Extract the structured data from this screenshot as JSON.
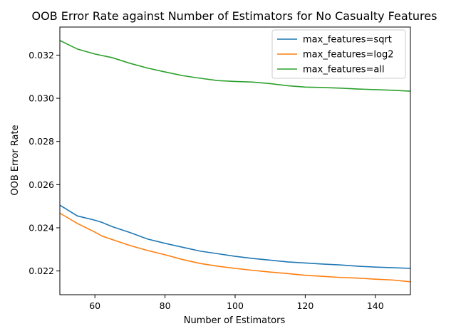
{
  "chart_data": {
    "type": "line",
    "title": "OOB Error Rate against Number of Estimators for No Casualty Features",
    "xlabel": "Number of Estimators",
    "ylabel": "OOB Error Rate",
    "xlim": [
      50,
      150
    ],
    "ylim": [
      0.0209,
      0.0333
    ],
    "x_ticks": [
      60,
      80,
      100,
      120,
      140
    ],
    "y_ticks": [
      0.022,
      0.024,
      0.026,
      0.028,
      0.03,
      0.032
    ],
    "x_tick_labels": [
      "60",
      "80",
      "100",
      "120",
      "140"
    ],
    "y_tick_labels": [
      "0.022",
      "0.024",
      "0.026",
      "0.028",
      "0.030",
      "0.032"
    ],
    "legend_position": "top-right",
    "grid": false,
    "series": [
      {
        "name": "max_features=sqrt",
        "color": "#1f77b4",
        "x": [
          50,
          55,
          60,
          62,
          65,
          70,
          75,
          80,
          85,
          90,
          95,
          100,
          105,
          110,
          115,
          120,
          125,
          130,
          135,
          140,
          145,
          150
        ],
        "y": [
          0.02505,
          0.02455,
          0.02435,
          0.02425,
          0.02405,
          0.02378,
          0.02348,
          0.02328,
          0.0231,
          0.02292,
          0.0228,
          0.02268,
          0.02258,
          0.0225,
          0.02242,
          0.02237,
          0.02232,
          0.02228,
          0.02222,
          0.02218,
          0.02215,
          0.02212
        ]
      },
      {
        "name": "max_features=log2",
        "color": "#ff7f0e",
        "x": [
          50,
          55,
          60,
          62,
          65,
          70,
          75,
          80,
          85,
          90,
          95,
          100,
          105,
          110,
          115,
          120,
          125,
          130,
          135,
          140,
          145,
          150
        ],
        "y": [
          0.02468,
          0.0242,
          0.0238,
          0.02362,
          0.02345,
          0.02318,
          0.02295,
          0.02275,
          0.02253,
          0.02235,
          0.02222,
          0.02212,
          0.02203,
          0.02195,
          0.02188,
          0.0218,
          0.02175,
          0.0217,
          0.02167,
          0.02162,
          0.02158,
          0.0215
        ]
      },
      {
        "name": "max_features=all",
        "color": "#2ca02c",
        "x": [
          50,
          55,
          60,
          65,
          70,
          75,
          80,
          85,
          90,
          95,
          100,
          105,
          110,
          115,
          120,
          125,
          130,
          135,
          140,
          145,
          150
        ],
        "y": [
          0.03268,
          0.03228,
          0.03205,
          0.03188,
          0.03162,
          0.0314,
          0.03122,
          0.03105,
          0.03093,
          0.03082,
          0.03078,
          0.03075,
          0.03068,
          0.03058,
          0.03052,
          0.0305,
          0.03047,
          0.03043,
          0.0304,
          0.03037,
          0.03033
        ]
      }
    ]
  }
}
